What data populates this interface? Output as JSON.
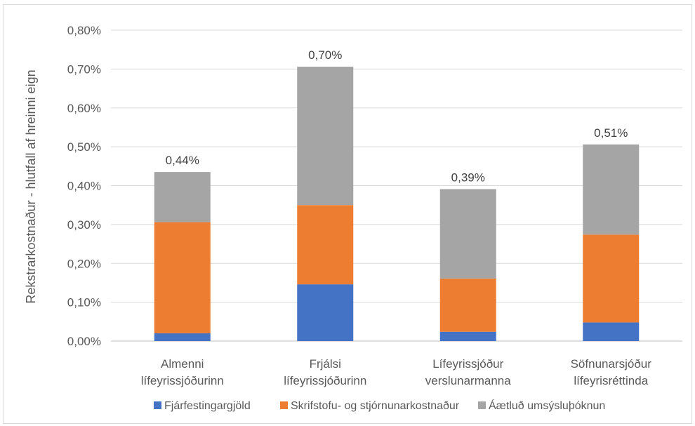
{
  "chart_data": {
    "type": "bar",
    "stacked": true,
    "ylabel": "Rekstrarkostnaður - hlutfall af hreinni eign",
    "xlabel": "",
    "ylim": [
      0,
      0.8
    ],
    "yticks": [
      "0,00%",
      "0,10%",
      "0,20%",
      "0,30%",
      "0,40%",
      "0,50%",
      "0,60%",
      "0,70%",
      "0,80%"
    ],
    "grid": true,
    "legend_position": "bottom",
    "categories": [
      [
        "Almenni",
        "lífeyrissjóðurinn"
      ],
      [
        "Frjálsi",
        "lífeyrissjóðurinn"
      ],
      [
        "Lífeyrissjóður",
        "verslunarmanna"
      ],
      [
        "Söfnunarsjóður",
        "lífeyrisréttinda"
      ]
    ],
    "series": [
      {
        "name": "Fjárfestingargjöld",
        "color": "#4472C4",
        "values": [
          0.02,
          0.146,
          0.024,
          0.048
        ]
      },
      {
        "name": "Skrifstofu- og stjórnunarkostnaður",
        "color": "#ED7D31",
        "values": [
          0.286,
          0.204,
          0.137,
          0.226
        ]
      },
      {
        "name": "Áætluð umsýsluþóknun",
        "color": "#A5A5A5",
        "values": [
          0.129,
          0.356,
          0.23,
          0.232
        ]
      }
    ],
    "totals_labels": [
      "0,44%",
      "0,70%",
      "0,39%",
      "0,51%"
    ]
  }
}
